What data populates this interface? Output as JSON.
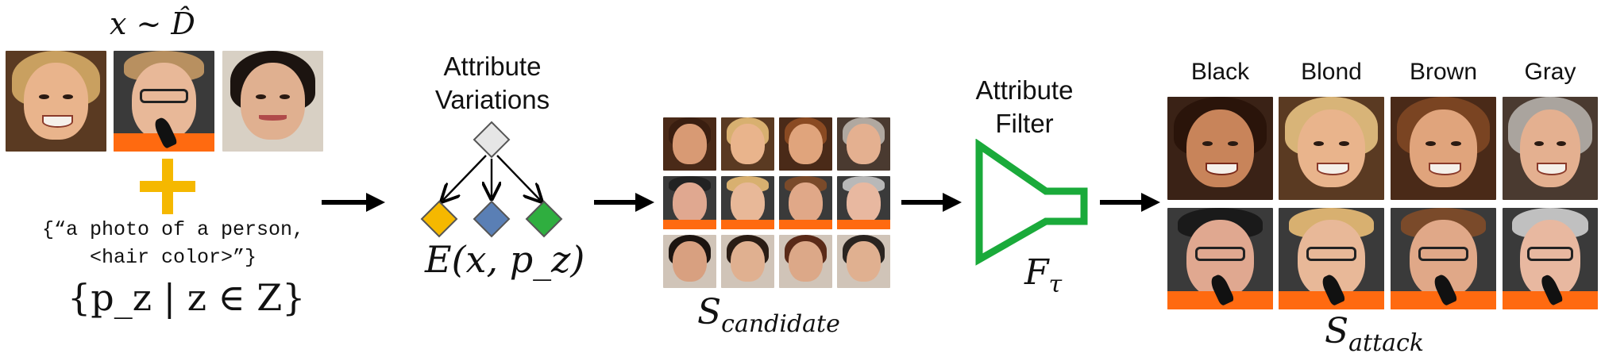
{
  "input_label": "x ~ D̂",
  "prompt_text": {
    "line1": "{“a photo of a person,",
    "line2": "<hair color>”}"
  },
  "prompt_set_label": "{p_z | z ∈ Z}",
  "attribute_variations": {
    "line1": "Attribute",
    "line2": "Variations"
  },
  "editor_label": "E(x, p_z)",
  "candidate_label": {
    "base": "S",
    "sub": "candidate"
  },
  "attribute_filter": {
    "line1": "Attribute",
    "line2": "Filter"
  },
  "filter_label": {
    "base": "F",
    "sub": "τ"
  },
  "attack_label": {
    "base": "S",
    "sub": "attack"
  },
  "hair_colors": [
    "Black",
    "Blond",
    "Brown",
    "Gray"
  ],
  "colors": {
    "plus": "#f5b800",
    "filter_green": "#1aaa3a",
    "node_gray": "#e6e6e6",
    "node_yellow": "#f5b800",
    "node_blue": "#5a7fb5",
    "node_green": "#2fae3f"
  }
}
